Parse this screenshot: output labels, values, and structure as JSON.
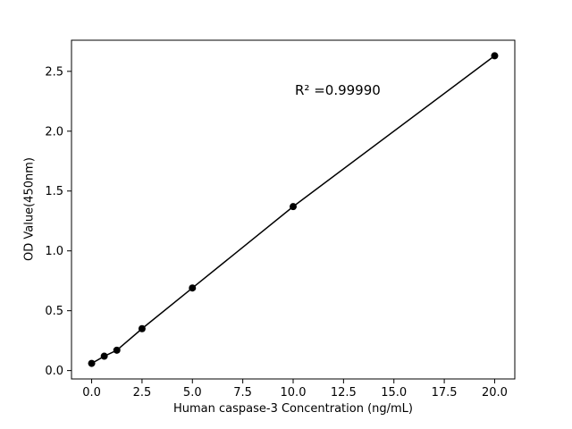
{
  "figure": {
    "background": "#ffffff",
    "foreground": "#000000"
  },
  "chart_data": {
    "type": "scatter",
    "title": "",
    "xlabel": "Human caspase-3 Concentration (ng/mL)",
    "ylabel": "OD Value(450nm)",
    "annotation": "R² =0.99990",
    "x": [
      0,
      0.625,
      1.25,
      2.5,
      5,
      10,
      20
    ],
    "y": [
      0.06,
      0.12,
      0.17,
      0.35,
      0.69,
      1.37,
      2.63
    ],
    "line": true,
    "marker": "circle",
    "marker_size": 4,
    "line_color": "#000000",
    "marker_color": "#000000",
    "xlim": [
      -1,
      21
    ],
    "ylim": [
      -0.07,
      2.76
    ],
    "xticks": [
      0.0,
      2.5,
      5.0,
      7.5,
      10.0,
      12.5,
      15.0,
      17.5,
      20.0
    ],
    "xtick_labels": [
      "0.0",
      "2.5",
      "5.0",
      "7.5",
      "10.0",
      "12.5",
      "15.0",
      "17.5",
      "20.0"
    ],
    "yticks": [
      0.0,
      0.5,
      1.0,
      1.5,
      2.0,
      2.5
    ],
    "ytick_labels": [
      "0.0",
      "0.5",
      "1.0",
      "1.5",
      "2.0",
      "2.5"
    ],
    "grid": false,
    "legend": null
  }
}
